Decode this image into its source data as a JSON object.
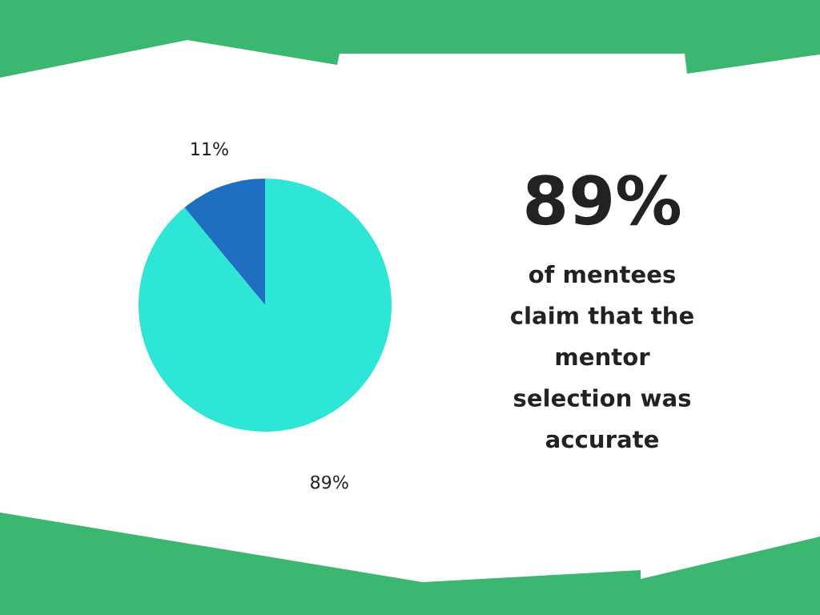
{
  "chart_data": {
    "type": "pie",
    "categories": [
      null,
      null
    ],
    "values": [
      11,
      89
    ],
    "colors": [
      "#1f6fc1",
      "#2de6d5"
    ],
    "value_labels": [
      "11%",
      "89%"
    ],
    "annotations": [
      "89%",
      "of mentees claim that the mentor selection was accurate"
    ]
  }
}
